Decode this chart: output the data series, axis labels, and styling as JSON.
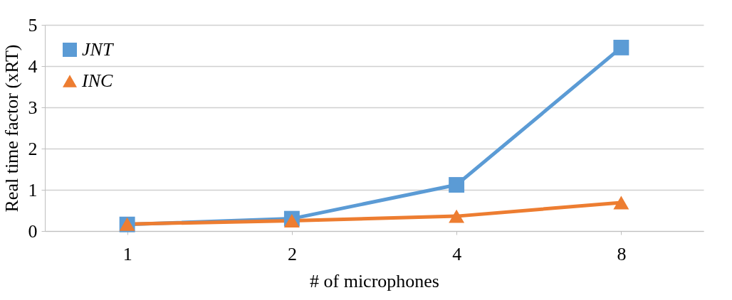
{
  "chart_data": {
    "type": "line",
    "xlabel": "# of microphones",
    "ylabel": "Real time factor (xRT)",
    "categories": [
      "1",
      "2",
      "4",
      "8"
    ],
    "series": [
      {
        "name": "JNT",
        "color": "#5b9bd5",
        "marker": "square",
        "values": [
          0.16,
          0.3,
          1.12,
          4.45
        ]
      },
      {
        "name": "INC",
        "color": "#ed7d31",
        "marker": "triangle",
        "values": [
          0.17,
          0.25,
          0.36,
          0.69
        ]
      }
    ],
    "ylim": [
      0,
      5
    ],
    "yticks": [
      0,
      1,
      2,
      3,
      4,
      5
    ],
    "grid": "y",
    "legend": "top left"
  }
}
